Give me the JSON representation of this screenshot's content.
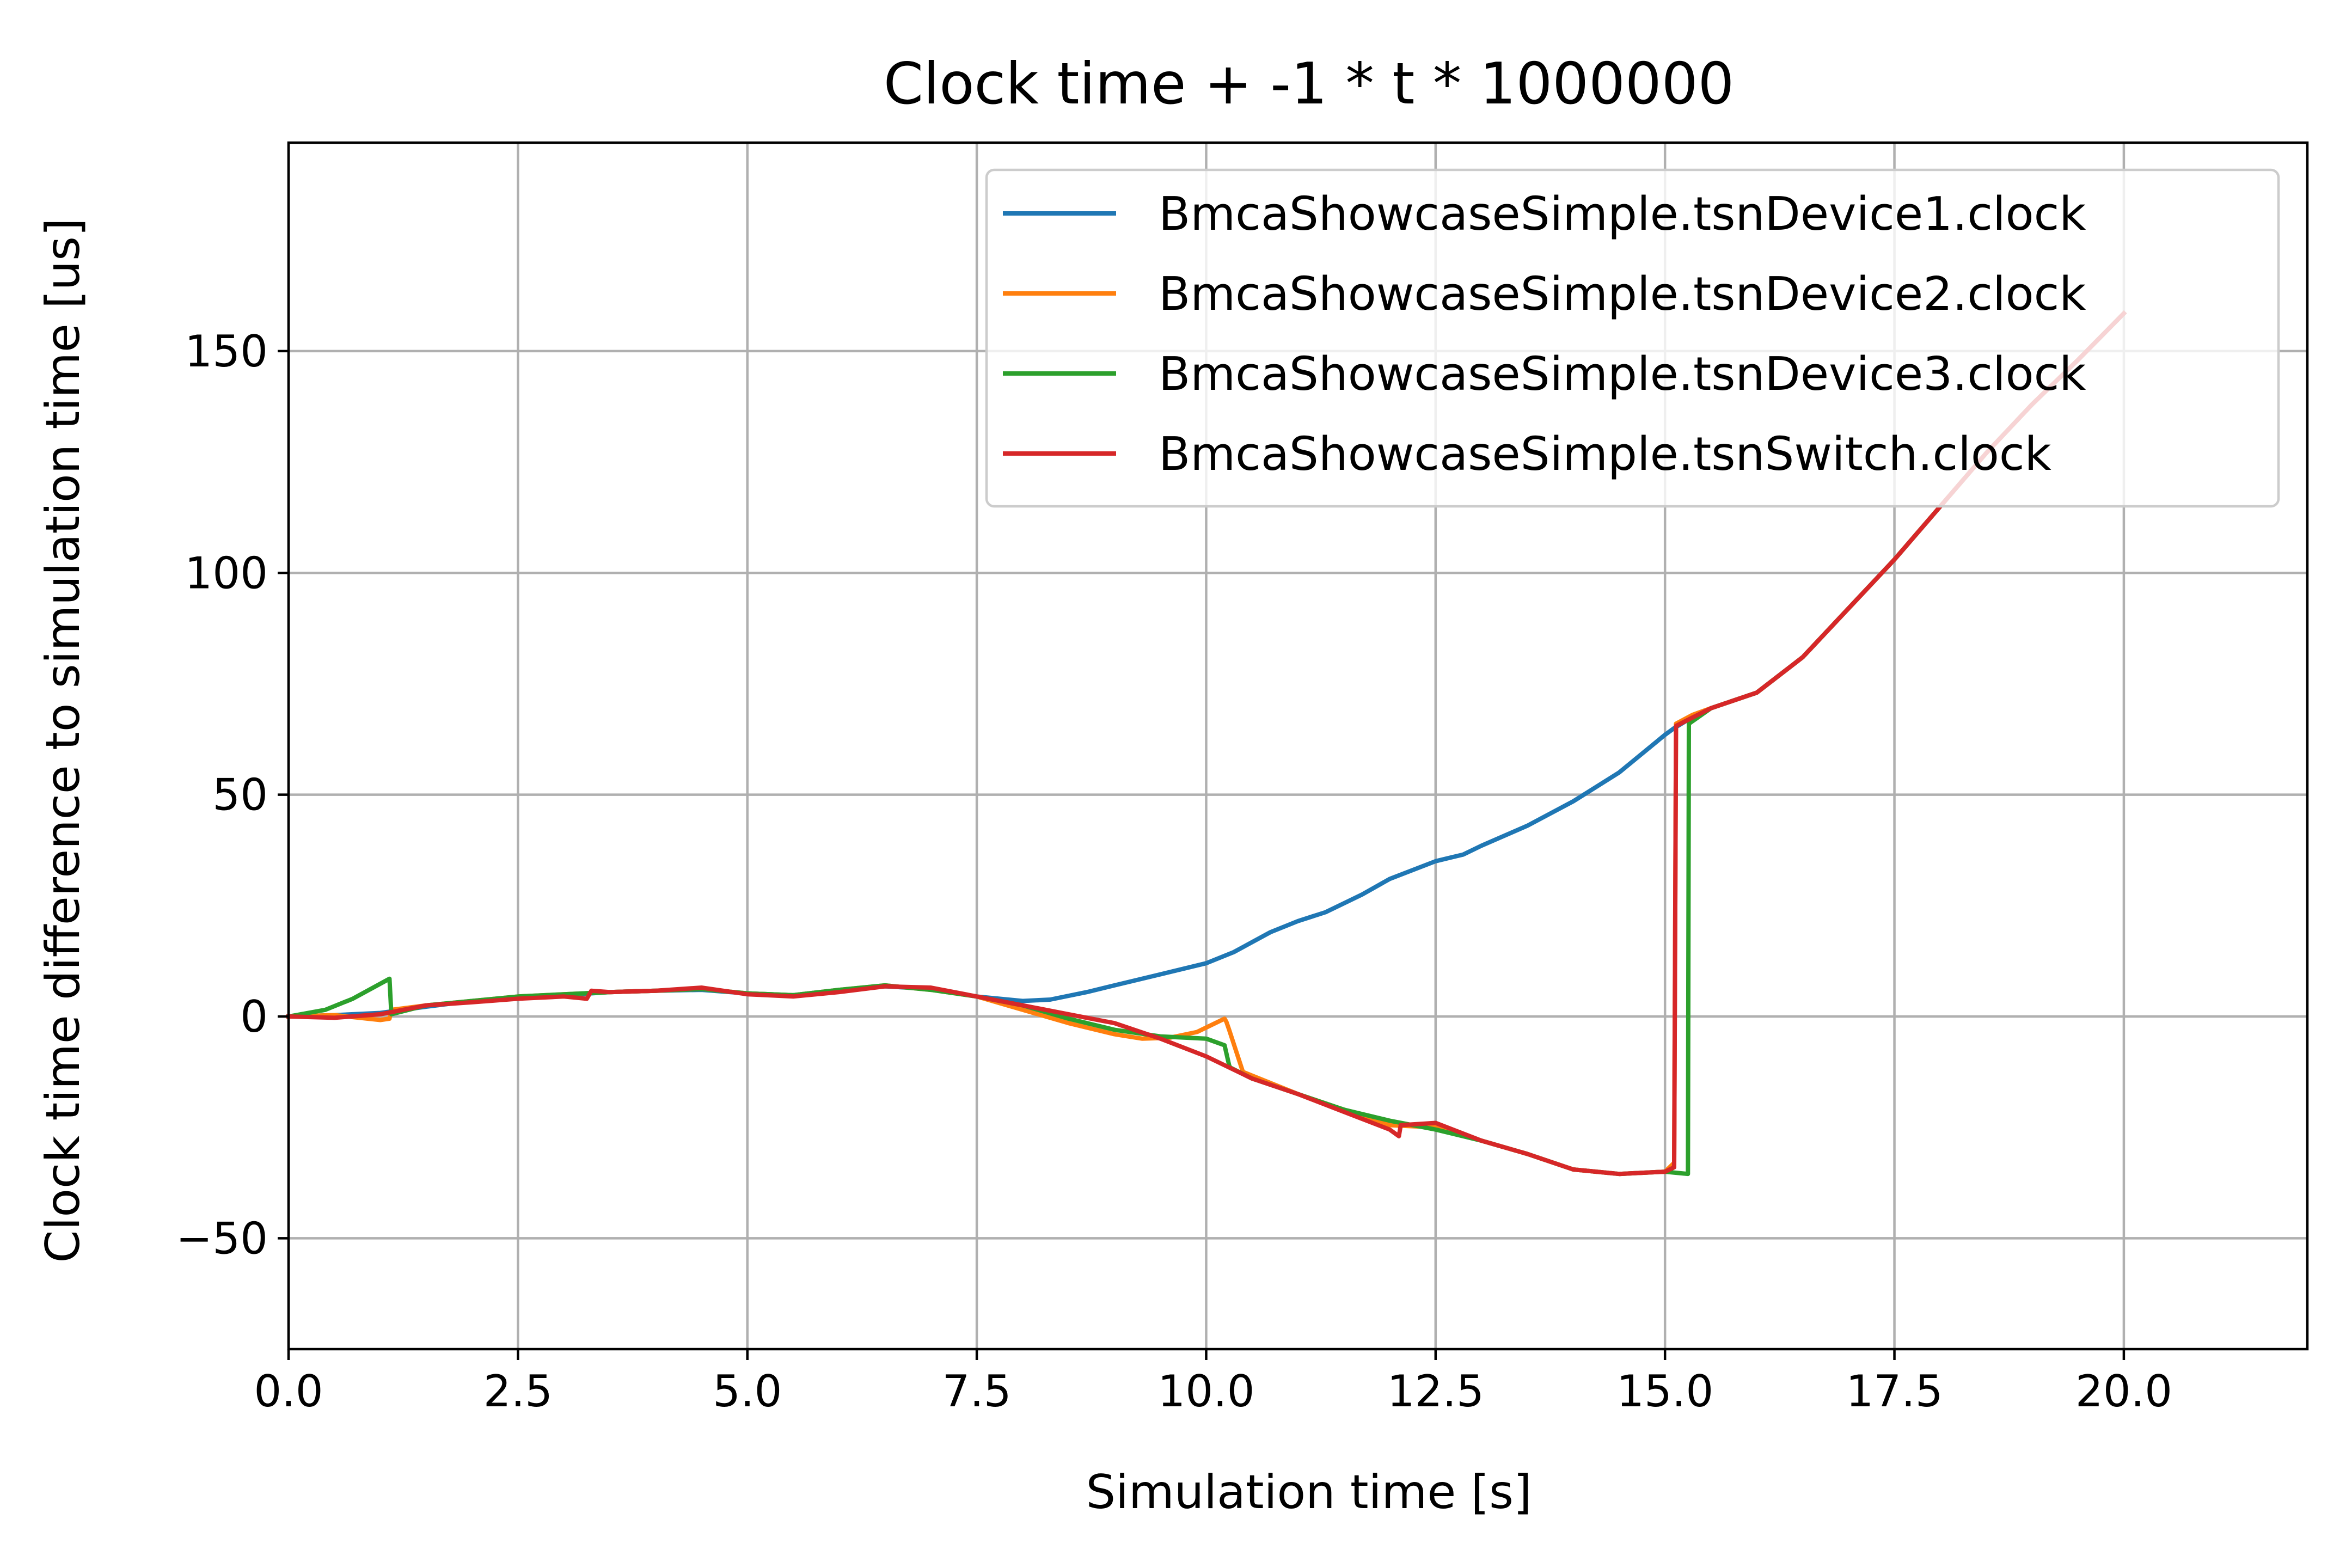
{
  "chart_data": {
    "type": "line",
    "title": "Clock time + -1 * t * 1000000",
    "xlabel": "Simulation time [s]",
    "ylabel": "Clock time difference to simulation time [us]",
    "xlim": [
      0,
      22
    ],
    "ylim": [
      -75,
      197
    ],
    "xticks": [
      "0.0",
      "2.5",
      "5.0",
      "7.5",
      "10.0",
      "12.5",
      "15.0",
      "17.5",
      "20.0"
    ],
    "xtick_values": [
      0,
      2.5,
      5,
      7.5,
      10,
      12.5,
      15,
      17.5,
      20
    ],
    "yticks": [
      "−50",
      "0",
      "50",
      "100",
      "150"
    ],
    "ytick_values": [
      -50,
      0,
      50,
      100,
      150
    ],
    "grid": true,
    "legend_position": "top-right",
    "colors": {
      "tsnDevice1": "#1f77b4",
      "tsnDevice2": "#ff7f0e",
      "tsnDevice3": "#2ca02c",
      "tsnSwitch": "#d62728"
    },
    "series": [
      {
        "name": "BmcaShowcaseSimple.tsnDevice1.clock",
        "color": "#1f77b4",
        "points": [
          [
            0,
            0
          ],
          [
            0.5,
            0.3
          ],
          [
            1.0,
            0.8
          ],
          [
            1.5,
            2.2
          ],
          [
            2.0,
            3.5
          ],
          [
            2.5,
            4.2
          ],
          [
            3.0,
            4.8
          ],
          [
            3.5,
            5.5
          ],
          [
            4.0,
            5.8
          ],
          [
            4.5,
            6.0
          ],
          [
            5.0,
            5.2
          ],
          [
            5.5,
            4.8
          ],
          [
            6.0,
            6.0
          ],
          [
            6.5,
            6.8
          ],
          [
            7.0,
            6.2
          ],
          [
            7.5,
            4.5
          ],
          [
            8.0,
            3.5
          ],
          [
            8.3,
            3.8
          ],
          [
            8.7,
            5.5
          ],
          [
            9.0,
            7.0
          ],
          [
            9.5,
            9.5
          ],
          [
            10.0,
            12.0
          ],
          [
            10.3,
            14.5
          ],
          [
            10.7,
            19.0
          ],
          [
            11.0,
            21.5
          ],
          [
            11.3,
            23.5
          ],
          [
            11.7,
            27.5
          ],
          [
            12.0,
            31.0
          ],
          [
            12.5,
            35.0
          ],
          [
            12.8,
            36.5
          ],
          [
            13.0,
            38.5
          ],
          [
            13.5,
            43.0
          ],
          [
            14.0,
            48.5
          ],
          [
            14.5,
            55.0
          ],
          [
            15.0,
            63.5
          ],
          [
            15.1,
            65.0
          ],
          [
            15.3,
            67.5
          ],
          [
            15.5,
            69.5
          ],
          [
            16.0,
            73.0
          ],
          [
            16.5,
            81.0
          ],
          [
            17.0,
            92.0
          ],
          [
            17.5,
            103.0
          ],
          [
            18.0,
            115.0
          ],
          [
            18.5,
            127.0
          ],
          [
            19.0,
            138.0
          ],
          [
            19.5,
            148.0
          ],
          [
            20.0,
            158.5
          ]
        ]
      },
      {
        "name": "BmcaShowcaseSimple.tsnDevice2.clock",
        "color": "#ff7f0e",
        "points": [
          [
            0,
            0
          ],
          [
            0.5,
            0.3
          ],
          [
            1.0,
            -0.8
          ],
          [
            1.1,
            -0.5
          ],
          [
            1.12,
            1.5
          ],
          [
            1.5,
            2.5
          ],
          [
            2.0,
            3.5
          ],
          [
            2.5,
            4.5
          ],
          [
            3.0,
            5.0
          ],
          [
            3.5,
            5.5
          ],
          [
            4.0,
            5.8
          ],
          [
            4.5,
            6.2
          ],
          [
            5.0,
            5.2
          ],
          [
            5.5,
            4.8
          ],
          [
            6.0,
            6.0
          ],
          [
            6.5,
            7.0
          ],
          [
            7.0,
            6.0
          ],
          [
            7.5,
            4.5
          ],
          [
            8.0,
            1.5
          ],
          [
            8.5,
            -1.5
          ],
          [
            9.0,
            -4.0
          ],
          [
            9.3,
            -5.0
          ],
          [
            9.6,
            -4.8
          ],
          [
            9.9,
            -3.5
          ],
          [
            10.2,
            -0.5
          ],
          [
            10.22,
            -1.2
          ],
          [
            10.25,
            -3.0
          ],
          [
            10.4,
            -12.5
          ],
          [
            11.0,
            -17.5
          ],
          [
            11.5,
            -21.0
          ],
          [
            12.0,
            -24.5
          ],
          [
            12.5,
            -25.0
          ],
          [
            13.0,
            -28.0
          ],
          [
            13.5,
            -31.0
          ],
          [
            14.0,
            -34.5
          ],
          [
            14.5,
            -35.5
          ],
          [
            15.0,
            -35.0
          ],
          [
            15.1,
            -33.0
          ],
          [
            15.12,
            66.0
          ],
          [
            15.3,
            68.0
          ],
          [
            15.5,
            69.5
          ],
          [
            16.0,
            73.0
          ],
          [
            16.5,
            81.0
          ],
          [
            17.0,
            92.0
          ],
          [
            17.5,
            103.0
          ],
          [
            18.0,
            115.0
          ],
          [
            18.5,
            127.0
          ],
          [
            19.0,
            138.0
          ],
          [
            19.5,
            148.0
          ],
          [
            20.0,
            158.5
          ]
        ]
      },
      {
        "name": "BmcaShowcaseSimple.tsnDevice3.clock",
        "color": "#2ca02c",
        "points": [
          [
            0,
            0
          ],
          [
            0.4,
            1.5
          ],
          [
            0.7,
            4.0
          ],
          [
            1.1,
            8.5
          ],
          [
            1.12,
            0.5
          ],
          [
            1.5,
            2.5
          ],
          [
            2.0,
            3.5
          ],
          [
            2.5,
            4.5
          ],
          [
            3.0,
            5.0
          ],
          [
            3.5,
            5.5
          ],
          [
            4.0,
            5.8
          ],
          [
            4.5,
            6.2
          ],
          [
            5.0,
            5.2
          ],
          [
            5.5,
            4.8
          ],
          [
            6.0,
            6.0
          ],
          [
            6.5,
            7.0
          ],
          [
            7.0,
            6.0
          ],
          [
            7.5,
            4.5
          ],
          [
            8.0,
            2.5
          ],
          [
            8.5,
            -0.5
          ],
          [
            9.0,
            -3.0
          ],
          [
            9.5,
            -4.5
          ],
          [
            10.0,
            -5.0
          ],
          [
            10.2,
            -6.5
          ],
          [
            10.25,
            -11.0
          ],
          [
            10.26,
            -11.5
          ],
          [
            10.5,
            -14.0
          ],
          [
            11.0,
            -17.5
          ],
          [
            11.5,
            -21.0
          ],
          [
            12.0,
            -23.5
          ],
          [
            12.5,
            -25.5
          ],
          [
            13.0,
            -28.0
          ],
          [
            13.5,
            -31.0
          ],
          [
            14.0,
            -34.5
          ],
          [
            14.5,
            -35.5
          ],
          [
            15.0,
            -35.0
          ],
          [
            15.25,
            -35.5
          ],
          [
            15.26,
            66.0
          ],
          [
            15.5,
            69.5
          ],
          [
            16.0,
            73.0
          ],
          [
            16.5,
            81.0
          ],
          [
            17.0,
            92.0
          ],
          [
            17.5,
            103.0
          ],
          [
            18.0,
            115.0
          ],
          [
            18.5,
            127.0
          ],
          [
            19.0,
            138.0
          ],
          [
            19.5,
            148.0
          ],
          [
            20.0,
            158.5
          ]
        ]
      },
      {
        "name": "BmcaShowcaseSimple.tsnSwitch.clock",
        "color": "#d62728",
        "points": [
          [
            0,
            0
          ],
          [
            0.5,
            -0.3
          ],
          [
            1.0,
            0.5
          ],
          [
            1.5,
            2.5
          ],
          [
            2.0,
            3.2
          ],
          [
            2.5,
            4.0
          ],
          [
            3.0,
            4.5
          ],
          [
            3.25,
            4.0
          ],
          [
            3.3,
            5.8
          ],
          [
            3.5,
            5.5
          ],
          [
            4.0,
            5.8
          ],
          [
            4.5,
            6.5
          ],
          [
            5.0,
            5.0
          ],
          [
            5.5,
            4.5
          ],
          [
            6.0,
            5.5
          ],
          [
            6.5,
            6.8
          ],
          [
            7.0,
            6.5
          ],
          [
            7.5,
            4.5
          ],
          [
            8.0,
            2.5
          ],
          [
            8.5,
            0.5
          ],
          [
            9.0,
            -1.5
          ],
          [
            9.5,
            -5.0
          ],
          [
            10.0,
            -9.0
          ],
          [
            10.5,
            -14.0
          ],
          [
            11.0,
            -17.5
          ],
          [
            11.5,
            -21.5
          ],
          [
            12.0,
            -25.5
          ],
          [
            12.1,
            -27.0
          ],
          [
            12.12,
            -24.5
          ],
          [
            12.5,
            -24.0
          ],
          [
            13.0,
            -28.0
          ],
          [
            13.5,
            -31.0
          ],
          [
            14.0,
            -34.5
          ],
          [
            14.5,
            -35.5
          ],
          [
            15.0,
            -35.0
          ],
          [
            15.1,
            -34.0
          ],
          [
            15.12,
            65.5
          ],
          [
            15.5,
            69.5
          ],
          [
            16.0,
            73.0
          ],
          [
            16.5,
            81.0
          ],
          [
            17.0,
            92.0
          ],
          [
            17.5,
            103.0
          ],
          [
            18.0,
            115.0
          ],
          [
            18.5,
            127.0
          ],
          [
            19.0,
            138.0
          ],
          [
            19.5,
            148.0
          ],
          [
            20.0,
            158.5
          ]
        ]
      }
    ]
  }
}
